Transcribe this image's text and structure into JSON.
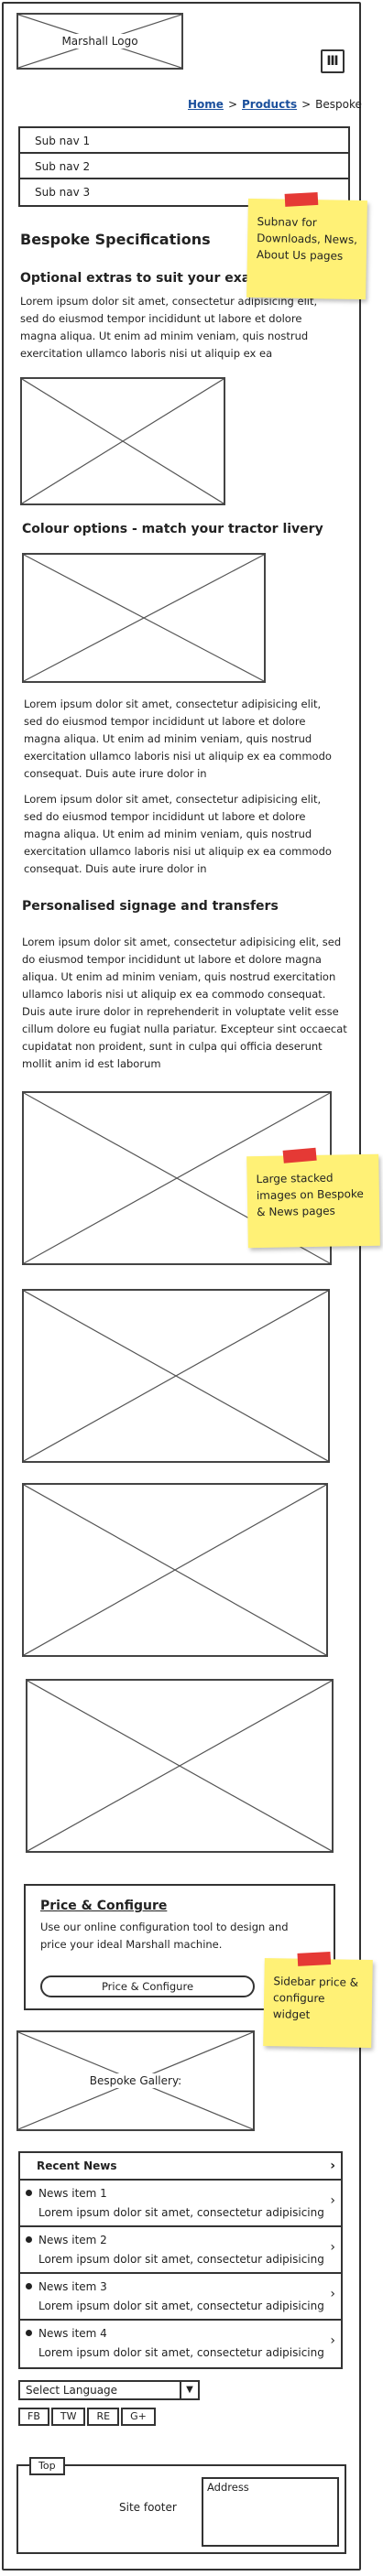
{
  "header": {
    "logo_label": "Marshall Logo",
    "menu_icon": "hamburger-menu-icon"
  },
  "breadcrumb": {
    "items": [
      "Home",
      "Products",
      "Bespoke"
    ],
    "separator": ">"
  },
  "subnav": {
    "items": [
      "Sub nav 1",
      "Sub nav 2",
      "Sub nav 3"
    ]
  },
  "main": {
    "page_title": "Bespoke Specifications",
    "section1_title": "Optional extras to suit your exact",
    "section1_text": "Lorem ipsum dolor sit amet, consectetur adipisicing elit, sed do eiusmod tempor incididunt ut labore et dolore magna aliqua. Ut enim ad minim veniam, quis nostrud exercitation ullamco laboris nisi ut aliquip ex ea",
    "section2_title": "Colour options - match your tractor livery",
    "section2_text_a": "Lorem ipsum dolor sit amet, consectetur adipisicing elit, sed do eiusmod tempor incididunt ut labore et dolore magna aliqua. Ut enim ad minim veniam, quis nostrud exercitation ullamco laboris nisi ut aliquip ex ea commodo consequat. Duis aute irure dolor in",
    "section2_text_b": "Lorem ipsum dolor sit amet, consectetur adipisicing elit, sed do eiusmod tempor incididunt ut labore et dolore magna aliqua. Ut enim ad minim veniam, quis nostrud exercitation ullamco laboris nisi ut aliquip ex ea commodo consequat. Duis aute irure dolor in",
    "section3_title": "Personalised signage and transfers",
    "section3_text": "Lorem ipsum dolor sit amet, consectetur adipisicing elit, sed do eiusmod tempor incididunt ut labore et dolore magna aliqua. Ut enim ad minim veniam, quis nostrud exercitation ullamco laboris nisi ut aliquip ex ea commodo consequat. Duis aute irure dolor in reprehenderit in voluptate velit esse cillum dolore eu fugiat nulla pariatur. Excepteur sint occaecat cupidatat non proident, sunt in culpa qui officia deserunt mollit anim id est laborum"
  },
  "notes": {
    "subnav_note": "Subnav for Downloads, News, About Us pages",
    "images_note": "Large stacked images on Bespoke & News pages",
    "sidebar_note": "Sidebar price & configure widget"
  },
  "price_widget": {
    "title": "Price & Configure",
    "text": "Use our online configuration tool to design and price your ideal Marshall machine.",
    "button_label": "Price & Configure"
  },
  "gallery": {
    "label": "Bespoke Gallery:"
  },
  "news": {
    "heading": "Recent News",
    "items": [
      {
        "title": "News item 1",
        "excerpt": "Lorem ipsum dolor sit amet, consectetur adipisicing"
      },
      {
        "title": "News item 2",
        "excerpt": "Lorem ipsum dolor sit amet, consectetur adipisicing"
      },
      {
        "title": "News item 3",
        "excerpt": "Lorem ipsum dolor sit amet, consectetur adipisicing"
      },
      {
        "title": "News item 4",
        "excerpt": "Lorem ipsum dolor sit amet, consectetur adipisicing"
      }
    ]
  },
  "language": {
    "selected": "Select Language"
  },
  "social": {
    "buttons": [
      "FB",
      "TW",
      "RE",
      "G+"
    ]
  },
  "footer": {
    "top_label": "Top",
    "label": "Site footer",
    "address_label": "Address"
  },
  "colors": {
    "sticky_note": "#fff176",
    "tape": "#e53935",
    "link": "#1a4f9c"
  }
}
